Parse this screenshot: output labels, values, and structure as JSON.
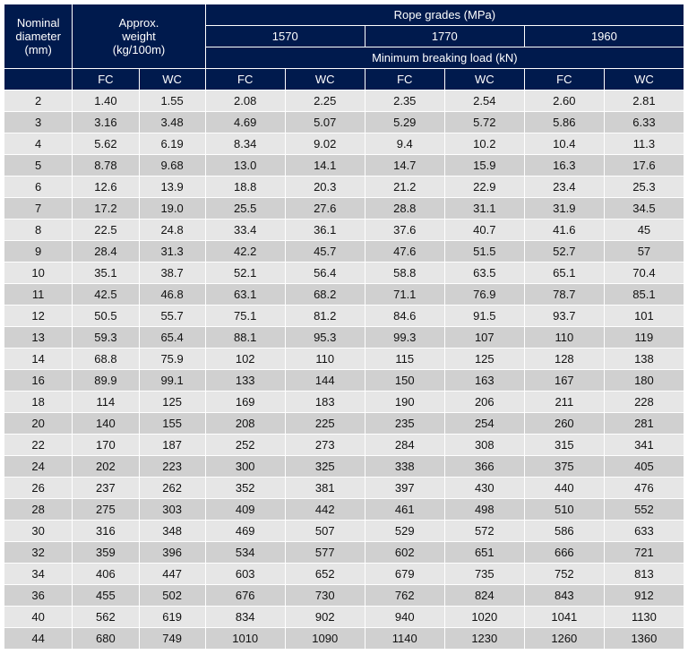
{
  "header": {
    "nominal_diameter": "Nominal",
    "nominal_diameter2": "diameter",
    "nominal_diameter3": "(mm)",
    "approx_weight": "Approx.",
    "approx_weight2": "weight",
    "approx_weight3": "(kg/100m)",
    "rope_grades": "Rope grades (MPa)",
    "min_break": "Minimum breaking load (kN)",
    "grade_1570": "1570",
    "grade_1770": "1770",
    "grade_1960": "1960",
    "fc": "FC",
    "wc": "WC"
  },
  "colors": {
    "header_bg": "#001a4d",
    "header_text": "#ffffff",
    "row_odd": "#e6e6e6",
    "row_even": "#d0d0d0",
    "border": "#ffffff"
  },
  "columns": [
    "diameter",
    "fc_wt",
    "wc_wt",
    "fc_1570",
    "wc_1570",
    "fc_1770",
    "wc_1770",
    "fc_1960",
    "wc_1960"
  ],
  "rows": [
    [
      "2",
      "1.40",
      "1.55",
      "2.08",
      "2.25",
      "2.35",
      "2.54",
      "2.60",
      "2.81"
    ],
    [
      "3",
      "3.16",
      "3.48",
      "4.69",
      "5.07",
      "5.29",
      "5.72",
      "5.86",
      "6.33"
    ],
    [
      "4",
      "5.62",
      "6.19",
      "8.34",
      "9.02",
      "9.4",
      "10.2",
      "10.4",
      "11.3"
    ],
    [
      "5",
      "8.78",
      "9.68",
      "13.0",
      "14.1",
      "14.7",
      "15.9",
      "16.3",
      "17.6"
    ],
    [
      "6",
      "12.6",
      "13.9",
      "18.8",
      "20.3",
      "21.2",
      "22.9",
      "23.4",
      "25.3"
    ],
    [
      "7",
      "17.2",
      "19.0",
      "25.5",
      "27.6",
      "28.8",
      "31.1",
      "31.9",
      "34.5"
    ],
    [
      "8",
      "22.5",
      "24.8",
      "33.4",
      "36.1",
      "37.6",
      "40.7",
      "41.6",
      "45"
    ],
    [
      "9",
      "28.4",
      "31.3",
      "42.2",
      "45.7",
      "47.6",
      "51.5",
      "52.7",
      "57"
    ],
    [
      "10",
      "35.1",
      "38.7",
      "52.1",
      "56.4",
      "58.8",
      "63.5",
      "65.1",
      "70.4"
    ],
    [
      "11",
      "42.5",
      "46.8",
      "63.1",
      "68.2",
      "71.1",
      "76.9",
      "78.7",
      "85.1"
    ],
    [
      "12",
      "50.5",
      "55.7",
      "75.1",
      "81.2",
      "84.6",
      "91.5",
      "93.7",
      "101"
    ],
    [
      "13",
      "59.3",
      "65.4",
      "88.1",
      "95.3",
      "99.3",
      "107",
      "110",
      "119"
    ],
    [
      "14",
      "68.8",
      "75.9",
      "102",
      "110",
      "115",
      "125",
      "128",
      "138"
    ],
    [
      "16",
      "89.9",
      "99.1",
      "133",
      "144",
      "150",
      "163",
      "167",
      "180"
    ],
    [
      "18",
      "114",
      "125",
      "169",
      "183",
      "190",
      "206",
      "211",
      "228"
    ],
    [
      "20",
      "140",
      "155",
      "208",
      "225",
      "235",
      "254",
      "260",
      "281"
    ],
    [
      "22",
      "170",
      "187",
      "252",
      "273",
      "284",
      "308",
      "315",
      "341"
    ],
    [
      "24",
      "202",
      "223",
      "300",
      "325",
      "338",
      "366",
      "375",
      "405"
    ],
    [
      "26",
      "237",
      "262",
      "352",
      "381",
      "397",
      "430",
      "440",
      "476"
    ],
    [
      "28",
      "275",
      "303",
      "409",
      "442",
      "461",
      "498",
      "510",
      "552"
    ],
    [
      "30",
      "316",
      "348",
      "469",
      "507",
      "529",
      "572",
      "586",
      "633"
    ],
    [
      "32",
      "359",
      "396",
      "534",
      "577",
      "602",
      "651",
      "666",
      "721"
    ],
    [
      "34",
      "406",
      "447",
      "603",
      "652",
      "679",
      "735",
      "752",
      "813"
    ],
    [
      "36",
      "455",
      "502",
      "676",
      "730",
      "762",
      "824",
      "843",
      "912"
    ],
    [
      "40",
      "562",
      "619",
      "834",
      "902",
      "940",
      "1020",
      "1041",
      "1130"
    ],
    [
      "44",
      "680",
      "749",
      "1010",
      "1090",
      "1140",
      "1230",
      "1260",
      "1360"
    ]
  ]
}
